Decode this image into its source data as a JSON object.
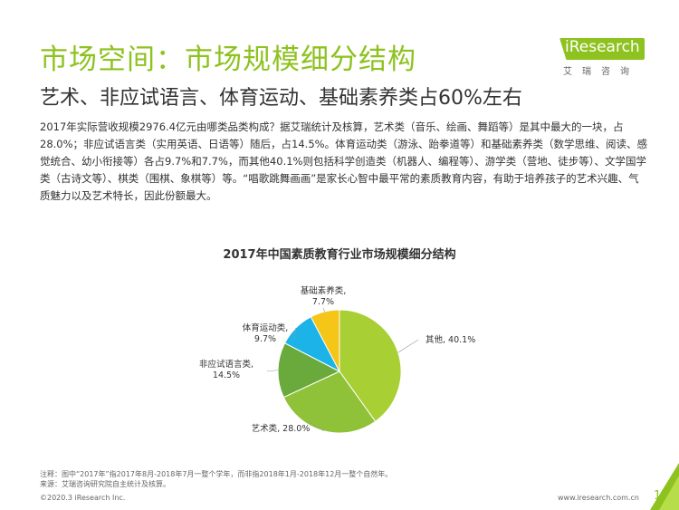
{
  "header": {
    "title": "市场空间：市场规模细分结构",
    "subtitle": "艺术、非应试语言、体育运动、基础素养类占60%左右"
  },
  "logo": {
    "brand": "iResearch",
    "cn": "艾瑞咨询"
  },
  "body_text": "2017年实际营收规模2976.4亿元由哪类品类构成？据艾瑞统计及核算，艺术类（音乐、绘画、舞蹈等）是其中最大的一块，占28.0%；非应试语言类（实用英语、日语等）随后，占14.5%。体育运动类（游泳、跆拳道等）和基础素养类（数学思维、阅读、感觉统合、幼小衔接等）各占9.7%和7.7%，而其他40.1%则包括科学创造类（机器人、编程等）、游学类（营地、徒步等）、文学国学类（古诗文等）、棋类（围棋、象棋等）等。“唱歌跳舞画画”是家长心智中最平常的素质教育内容，有助于培养孩子的艺术兴趣、气质魅力以及艺术特长，因此份额最大。",
  "chart_data": {
    "type": "pie",
    "title": "2017年中国素质教育行业市场规模细分结构",
    "unit": "%",
    "slices": [
      {
        "label": "其他",
        "value": 40.1,
        "display_label": "其他, 40.1%",
        "color": "#a8cf33"
      },
      {
        "label": "艺术类",
        "value": 28.0,
        "display_label": "艺术类, 28.0%",
        "color": "#8fc238"
      },
      {
        "label": "非应试语言类",
        "value": 14.5,
        "display_label": "非应试语言类,\n14.5%",
        "color": "#6aaa3c"
      },
      {
        "label": "体育运动类",
        "value": 9.7,
        "display_label": "体育运动类,\n9.7%",
        "color": "#1bb3e8"
      },
      {
        "label": "基础素养类",
        "value": 7.7,
        "display_label": "基础素养类,\n7.7%",
        "color": "#f5c518"
      }
    ]
  },
  "footnotes": {
    "note": "注释：图中“2017年”指2017年8月-2018年7月一整个学年，而非指2018年1月-2018年12月一整个自然年。",
    "source": "来源：艾瑞咨询研究院自主统计及核算。"
  },
  "footer": {
    "copyright": "©2020.3 iResearch Inc.",
    "website": "www.iresearch.com.cn",
    "page": "16"
  },
  "colors": {
    "accent": "#8dc21f"
  }
}
